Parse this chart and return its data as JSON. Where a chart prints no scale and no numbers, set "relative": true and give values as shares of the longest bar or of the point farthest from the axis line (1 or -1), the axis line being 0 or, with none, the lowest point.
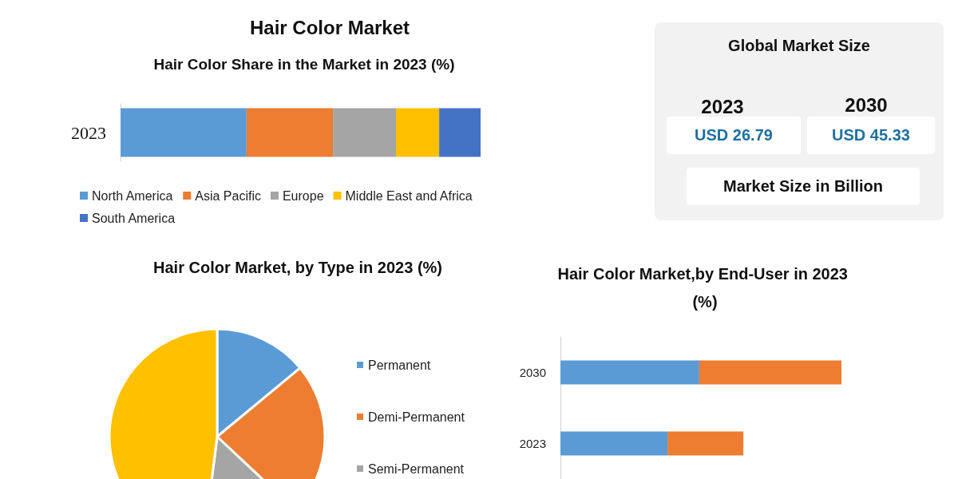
{
  "chart_data": [
    {
      "type": "bar",
      "title": "Hair Color Market",
      "subtitle": "Hair Color Share in the Market in 2023 (%)",
      "orientation": "horizontal",
      "stacked": true,
      "relative": true,
      "categories": [
        "2023"
      ],
      "legend": "bottom",
      "series": [
        {
          "name": "North America",
          "color": "#5b9bd5",
          "values": [
            0.35
          ]
        },
        {
          "name": "Asia Pacific",
          "color": "#ed7d31",
          "values": [
            0.24
          ]
        },
        {
          "name": "Europe",
          "color": "#a5a5a5",
          "values": [
            0.175
          ]
        },
        {
          "name": "Middle East and Africa",
          "color": "#ffc000",
          "values": [
            0.12
          ]
        },
        {
          "name": "South America",
          "color": "#4472c4",
          "values": [
            0.115
          ]
        }
      ]
    },
    {
      "type": "other",
      "title": "Global  Market  Size",
      "annotations": [
        "2023",
        "2030",
        "USD 26.79",
        "USD 45.33",
        "Market Size in Billion"
      ]
    },
    {
      "type": "pie",
      "title": "Hair Color Market, by Type in 2023 (%)",
      "categories": [
        "Permanent",
        "Demi-Permanent",
        "Semi-Permanent",
        null
      ],
      "values": [
        14,
        23,
        15,
        48
      ],
      "colors": [
        "#5b9bd5",
        "#ed7d31",
        "#a5a5a5",
        "#ffc000"
      ],
      "legend": "right"
    },
    {
      "type": "bar",
      "title": "Hair Color Market,by End-User in 2023 (%)",
      "orientation": "horizontal",
      "stacked": true,
      "relative": true,
      "categories": [
        "2030",
        "2023"
      ],
      "series": [
        {
          "color": "#5b9bd5",
          "values": [
            0.494,
            0.381
          ]
        },
        {
          "color": "#ed7d31",
          "values": [
            0.506,
            0.27
          ]
        }
      ]
    }
  ]
}
